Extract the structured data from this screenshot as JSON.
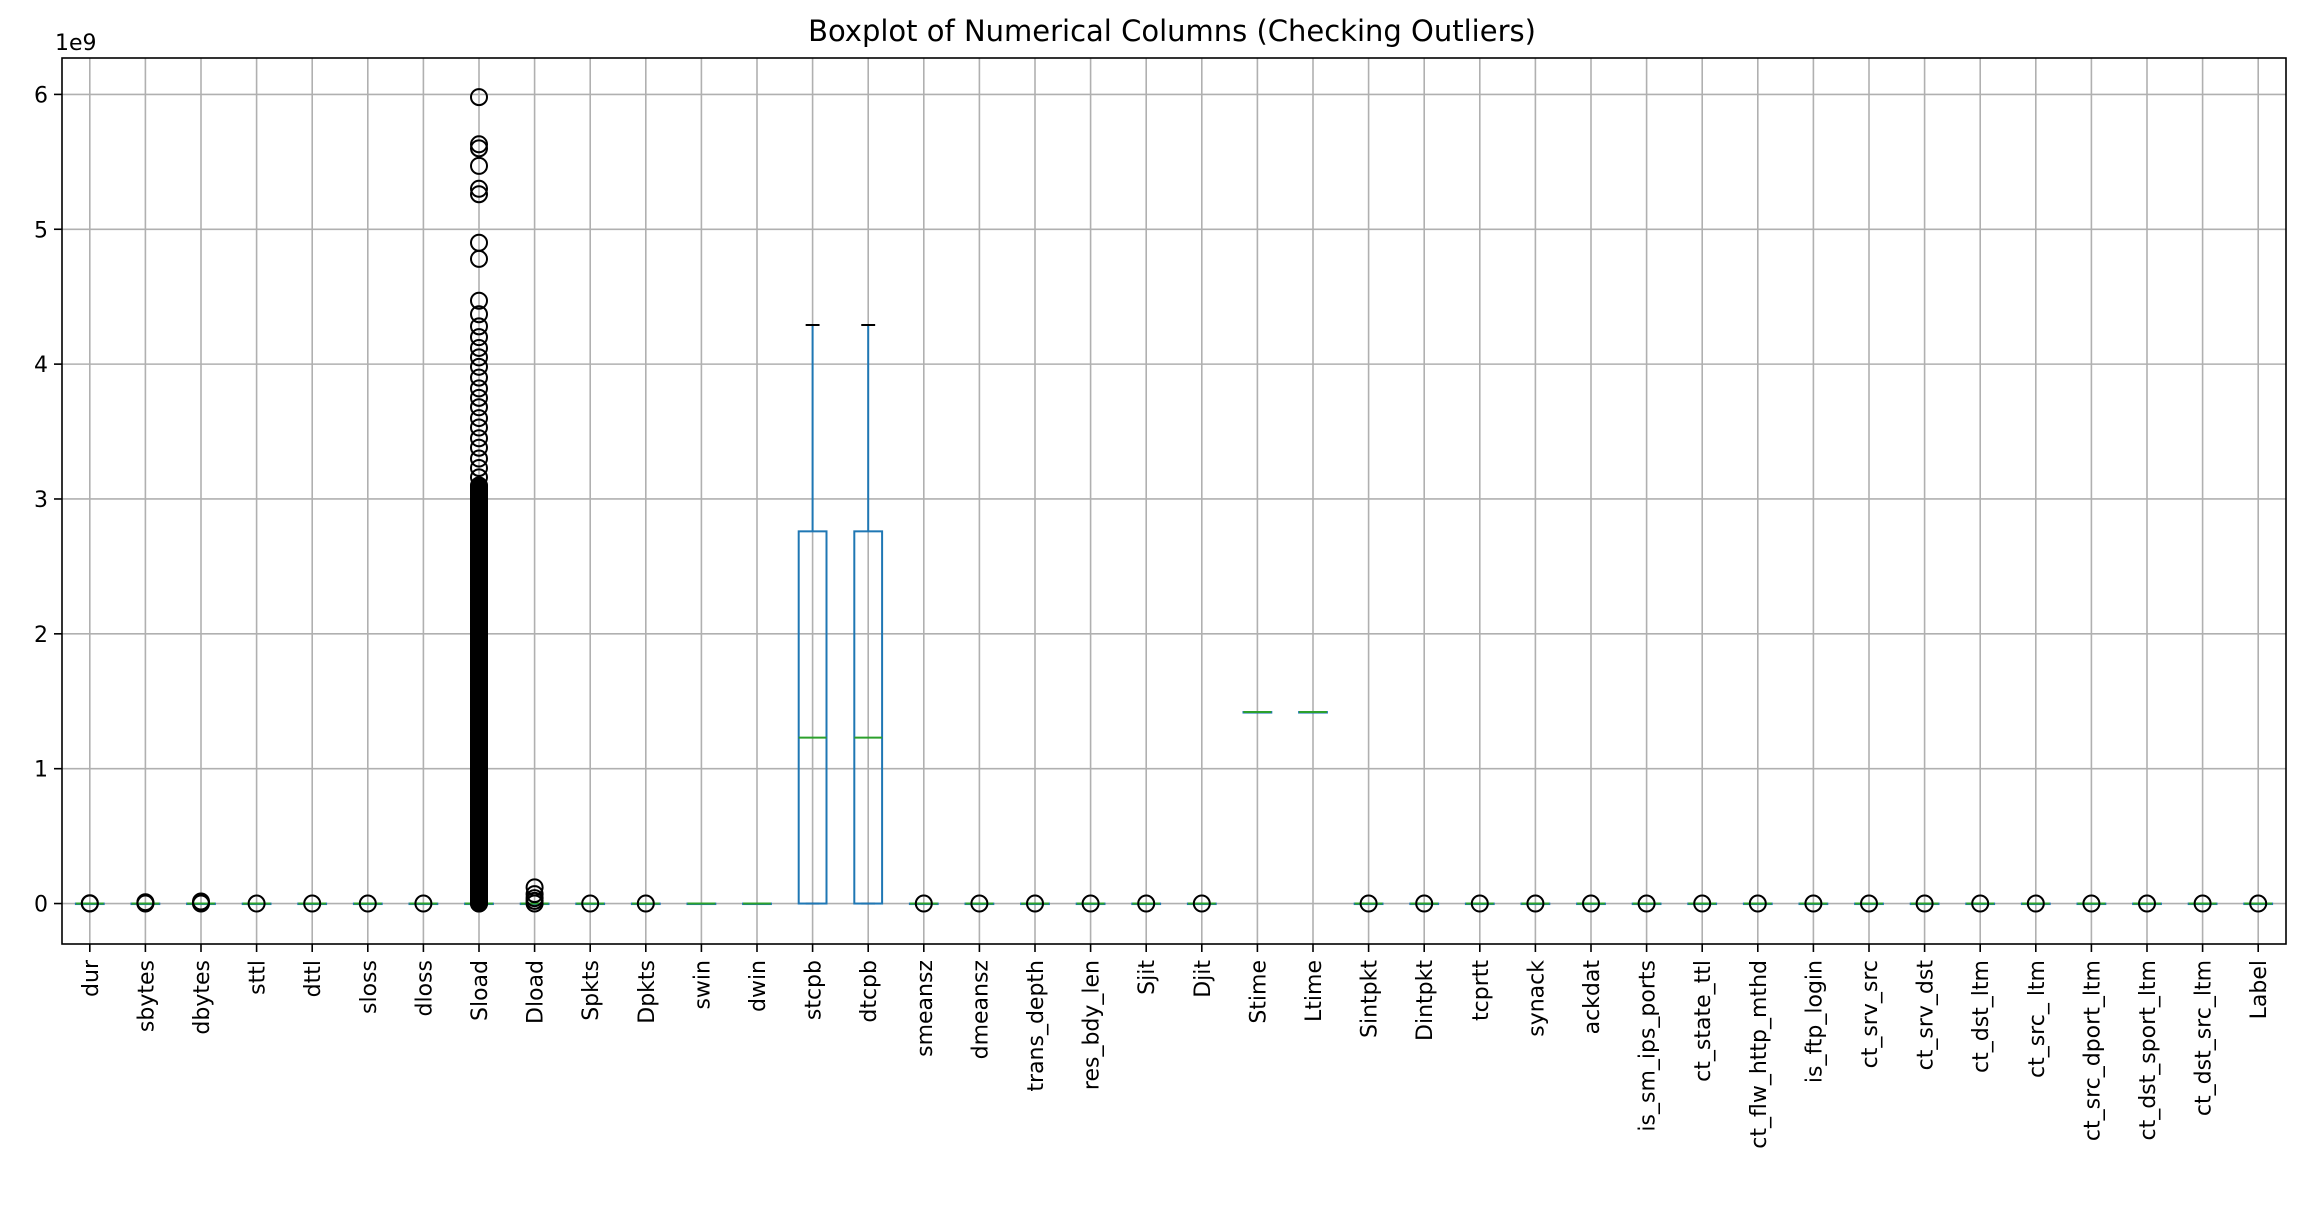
{
  "chart_data": {
    "type": "box",
    "title": "Boxplot of Numerical Columns (Checking Outliers)",
    "xlabel": "",
    "ylabel": "",
    "y_offset_label": "1e9",
    "ylim": [
      -0.3,
      6.27
    ],
    "y_ticks": [
      0,
      1,
      2,
      3,
      4,
      5,
      6
    ],
    "y_unit": "x1e9",
    "grid": true,
    "colors": {
      "box": "#1f77b4",
      "median": "#2ca02c",
      "flier": "#000000",
      "grid": "#b0b0b0"
    },
    "categories": [
      "dur",
      "sbytes",
      "dbytes",
      "sttl",
      "dttl",
      "sloss",
      "dloss",
      "Sload",
      "Dload",
      "Spkts",
      "Dpkts",
      "swin",
      "dwin",
      "stcpb",
      "dtcpb",
      "smeansz",
      "dmeansz",
      "trans_depth",
      "res_bdy_len",
      "Sjit",
      "Djit",
      "Stime",
      "Ltime",
      "Sintpkt",
      "Dintpkt",
      "tcprtt",
      "synack",
      "ackdat",
      "is_sm_ips_ports",
      "ct_state_ttl",
      "ct_flw_http_mthd",
      "is_ftp_login",
      "ct_srv_src",
      "ct_srv_dst",
      "ct_dst_ltm",
      "ct_src_ ltm",
      "ct_src_dport_ltm",
      "ct_dst_sport_ltm",
      "ct_dst_src_ltm",
      "Label"
    ],
    "boxes": [
      {
        "q1": 0,
        "median": 0,
        "q3": 0,
        "whislo": 0,
        "whishi": 0,
        "fliers": [
          0,
          0.002
        ]
      },
      {
        "q1": 0,
        "median": 0,
        "q3": 0,
        "whislo": 0,
        "whishi": 0,
        "fliers": [
          0,
          0.005,
          0.01
        ]
      },
      {
        "q1": 0,
        "median": 0,
        "q3": 0,
        "whislo": 0,
        "whishi": 0,
        "fliers": [
          0,
          0.005,
          0.015
        ]
      },
      {
        "q1": 0,
        "median": 0,
        "q3": 0,
        "whislo": 0,
        "whishi": 0,
        "fliers": [
          0
        ]
      },
      {
        "q1": 0,
        "median": 0,
        "q3": 0,
        "whislo": 0,
        "whishi": 0,
        "fliers": [
          0
        ]
      },
      {
        "q1": 0,
        "median": 0,
        "q3": 0,
        "whislo": 0,
        "whishi": 0,
        "fliers": [
          0
        ]
      },
      {
        "q1": 0,
        "median": 0,
        "q3": 0,
        "whislo": 0,
        "whishi": 0,
        "fliers": [
          0
        ]
      },
      {
        "q1": 0,
        "median": 0,
        "q3": 0,
        "whislo": 0,
        "whishi": 0,
        "fliers": [
          5.98,
          5.63,
          5.6,
          5.47,
          5.3,
          5.26,
          4.9,
          4.78,
          4.47,
          4.37,
          4.28,
          4.2,
          4.12,
          4.05,
          3.98,
          3.9,
          3.82,
          3.75,
          3.68,
          3.6,
          3.53,
          3.45,
          3.38,
          3.3,
          3.23,
          3.16,
          3.1,
          3.04,
          2.98,
          2.92,
          2.86,
          2.8,
          2.74,
          2.68,
          2.62,
          2.56,
          2.5,
          2.44,
          2.38,
          2.32,
          2.26,
          2.2,
          2.14,
          2.08,
          2.02,
          1.96,
          1.9,
          1.84,
          1.78,
          1.72,
          1.66,
          1.6,
          1.54,
          1.48,
          1.42,
          1.36,
          1.3,
          1.24,
          1.18,
          1.12,
          1.06,
          1.0,
          0.94,
          0.88,
          0.82,
          0.76,
          0.7,
          0.64,
          0.58,
          0.52,
          0.46,
          0.4,
          0.34,
          0.28,
          0.22,
          0.16,
          0.1,
          0.04,
          0
        ]
      },
      {
        "q1": 0,
        "median": 0,
        "q3": 0,
        "whislo": 0,
        "whishi": 0,
        "fliers": [
          0.12,
          0.07,
          0.04,
          0.02,
          0
        ]
      },
      {
        "q1": 0,
        "median": 0,
        "q3": 0,
        "whislo": 0,
        "whishi": 0,
        "fliers": [
          0
        ]
      },
      {
        "q1": 0,
        "median": 0,
        "q3": 0,
        "whislo": 0,
        "whishi": 0,
        "fliers": [
          0
        ]
      },
      {
        "q1": 0,
        "median": 0,
        "q3": 0,
        "whislo": 0,
        "whishi": 0,
        "fliers": []
      },
      {
        "q1": 0,
        "median": 0,
        "q3": 0,
        "whislo": 0,
        "whishi": 0,
        "fliers": []
      },
      {
        "q1": 0,
        "median": 1.23,
        "q3": 2.76,
        "whislo": 0,
        "whishi": 4.29,
        "fliers": []
      },
      {
        "q1": 0,
        "median": 1.23,
        "q3": 2.76,
        "whislo": 0,
        "whishi": 4.29,
        "fliers": []
      },
      {
        "q1": 0,
        "median": 0,
        "q3": 0,
        "whislo": 0,
        "whishi": 0,
        "fliers": [
          0
        ]
      },
      {
        "q1": 0,
        "median": 0,
        "q3": 0,
        "whislo": 0,
        "whishi": 0,
        "fliers": [
          0
        ]
      },
      {
        "q1": 0,
        "median": 0,
        "q3": 0,
        "whislo": 0,
        "whishi": 0,
        "fliers": [
          0
        ]
      },
      {
        "q1": 0,
        "median": 0,
        "q3": 0,
        "whislo": 0,
        "whishi": 0,
        "fliers": [
          0
        ]
      },
      {
        "q1": 0,
        "median": 0,
        "q3": 0,
        "whislo": 0,
        "whishi": 0,
        "fliers": [
          0
        ]
      },
      {
        "q1": 0,
        "median": 0,
        "q3": 0,
        "whislo": 0,
        "whishi": 0,
        "fliers": [
          0
        ]
      },
      {
        "q1": 1.42,
        "median": 1.42,
        "q3": 1.42,
        "whislo": 1.42,
        "whishi": 1.42,
        "fliers": []
      },
      {
        "q1": 1.42,
        "median": 1.42,
        "q3": 1.42,
        "whislo": 1.42,
        "whishi": 1.42,
        "fliers": []
      },
      {
        "q1": 0,
        "median": 0,
        "q3": 0,
        "whislo": 0,
        "whishi": 0,
        "fliers": [
          0
        ]
      },
      {
        "q1": 0,
        "median": 0,
        "q3": 0,
        "whislo": 0,
        "whishi": 0,
        "fliers": [
          0
        ]
      },
      {
        "q1": 0,
        "median": 0,
        "q3": 0,
        "whislo": 0,
        "whishi": 0,
        "fliers": [
          0
        ]
      },
      {
        "q1": 0,
        "median": 0,
        "q3": 0,
        "whislo": 0,
        "whishi": 0,
        "fliers": [
          0
        ]
      },
      {
        "q1": 0,
        "median": 0,
        "q3": 0,
        "whislo": 0,
        "whishi": 0,
        "fliers": [
          0
        ]
      },
      {
        "q1": 0,
        "median": 0,
        "q3": 0,
        "whislo": 0,
        "whishi": 0,
        "fliers": [
          0
        ]
      },
      {
        "q1": 0,
        "median": 0,
        "q3": 0,
        "whislo": 0,
        "whishi": 0,
        "fliers": [
          0
        ]
      },
      {
        "q1": 0,
        "median": 0,
        "q3": 0,
        "whislo": 0,
        "whishi": 0,
        "fliers": [
          0
        ]
      },
      {
        "q1": 0,
        "median": 0,
        "q3": 0,
        "whislo": 0,
        "whishi": 0,
        "fliers": [
          0
        ]
      },
      {
        "q1": 0,
        "median": 0,
        "q3": 0,
        "whislo": 0,
        "whishi": 0,
        "fliers": [
          0
        ]
      },
      {
        "q1": 0,
        "median": 0,
        "q3": 0,
        "whislo": 0,
        "whishi": 0,
        "fliers": [
          0
        ]
      },
      {
        "q1": 0,
        "median": 0,
        "q3": 0,
        "whislo": 0,
        "whishi": 0,
        "fliers": [
          0
        ]
      },
      {
        "q1": 0,
        "median": 0,
        "q3": 0,
        "whislo": 0,
        "whishi": 0,
        "fliers": [
          0
        ]
      },
      {
        "q1": 0,
        "median": 0,
        "q3": 0,
        "whislo": 0,
        "whishi": 0,
        "fliers": [
          0
        ]
      },
      {
        "q1": 0,
        "median": 0,
        "q3": 0,
        "whislo": 0,
        "whishi": 0,
        "fliers": [
          0
        ]
      },
      {
        "q1": 0,
        "median": 0,
        "q3": 0,
        "whislo": 0,
        "whishi": 0,
        "fliers": [
          0
        ]
      },
      {
        "q1": 0,
        "median": 0,
        "q3": 0,
        "whislo": 0,
        "whishi": 0,
        "fliers": [
          0
        ]
      }
    ]
  }
}
